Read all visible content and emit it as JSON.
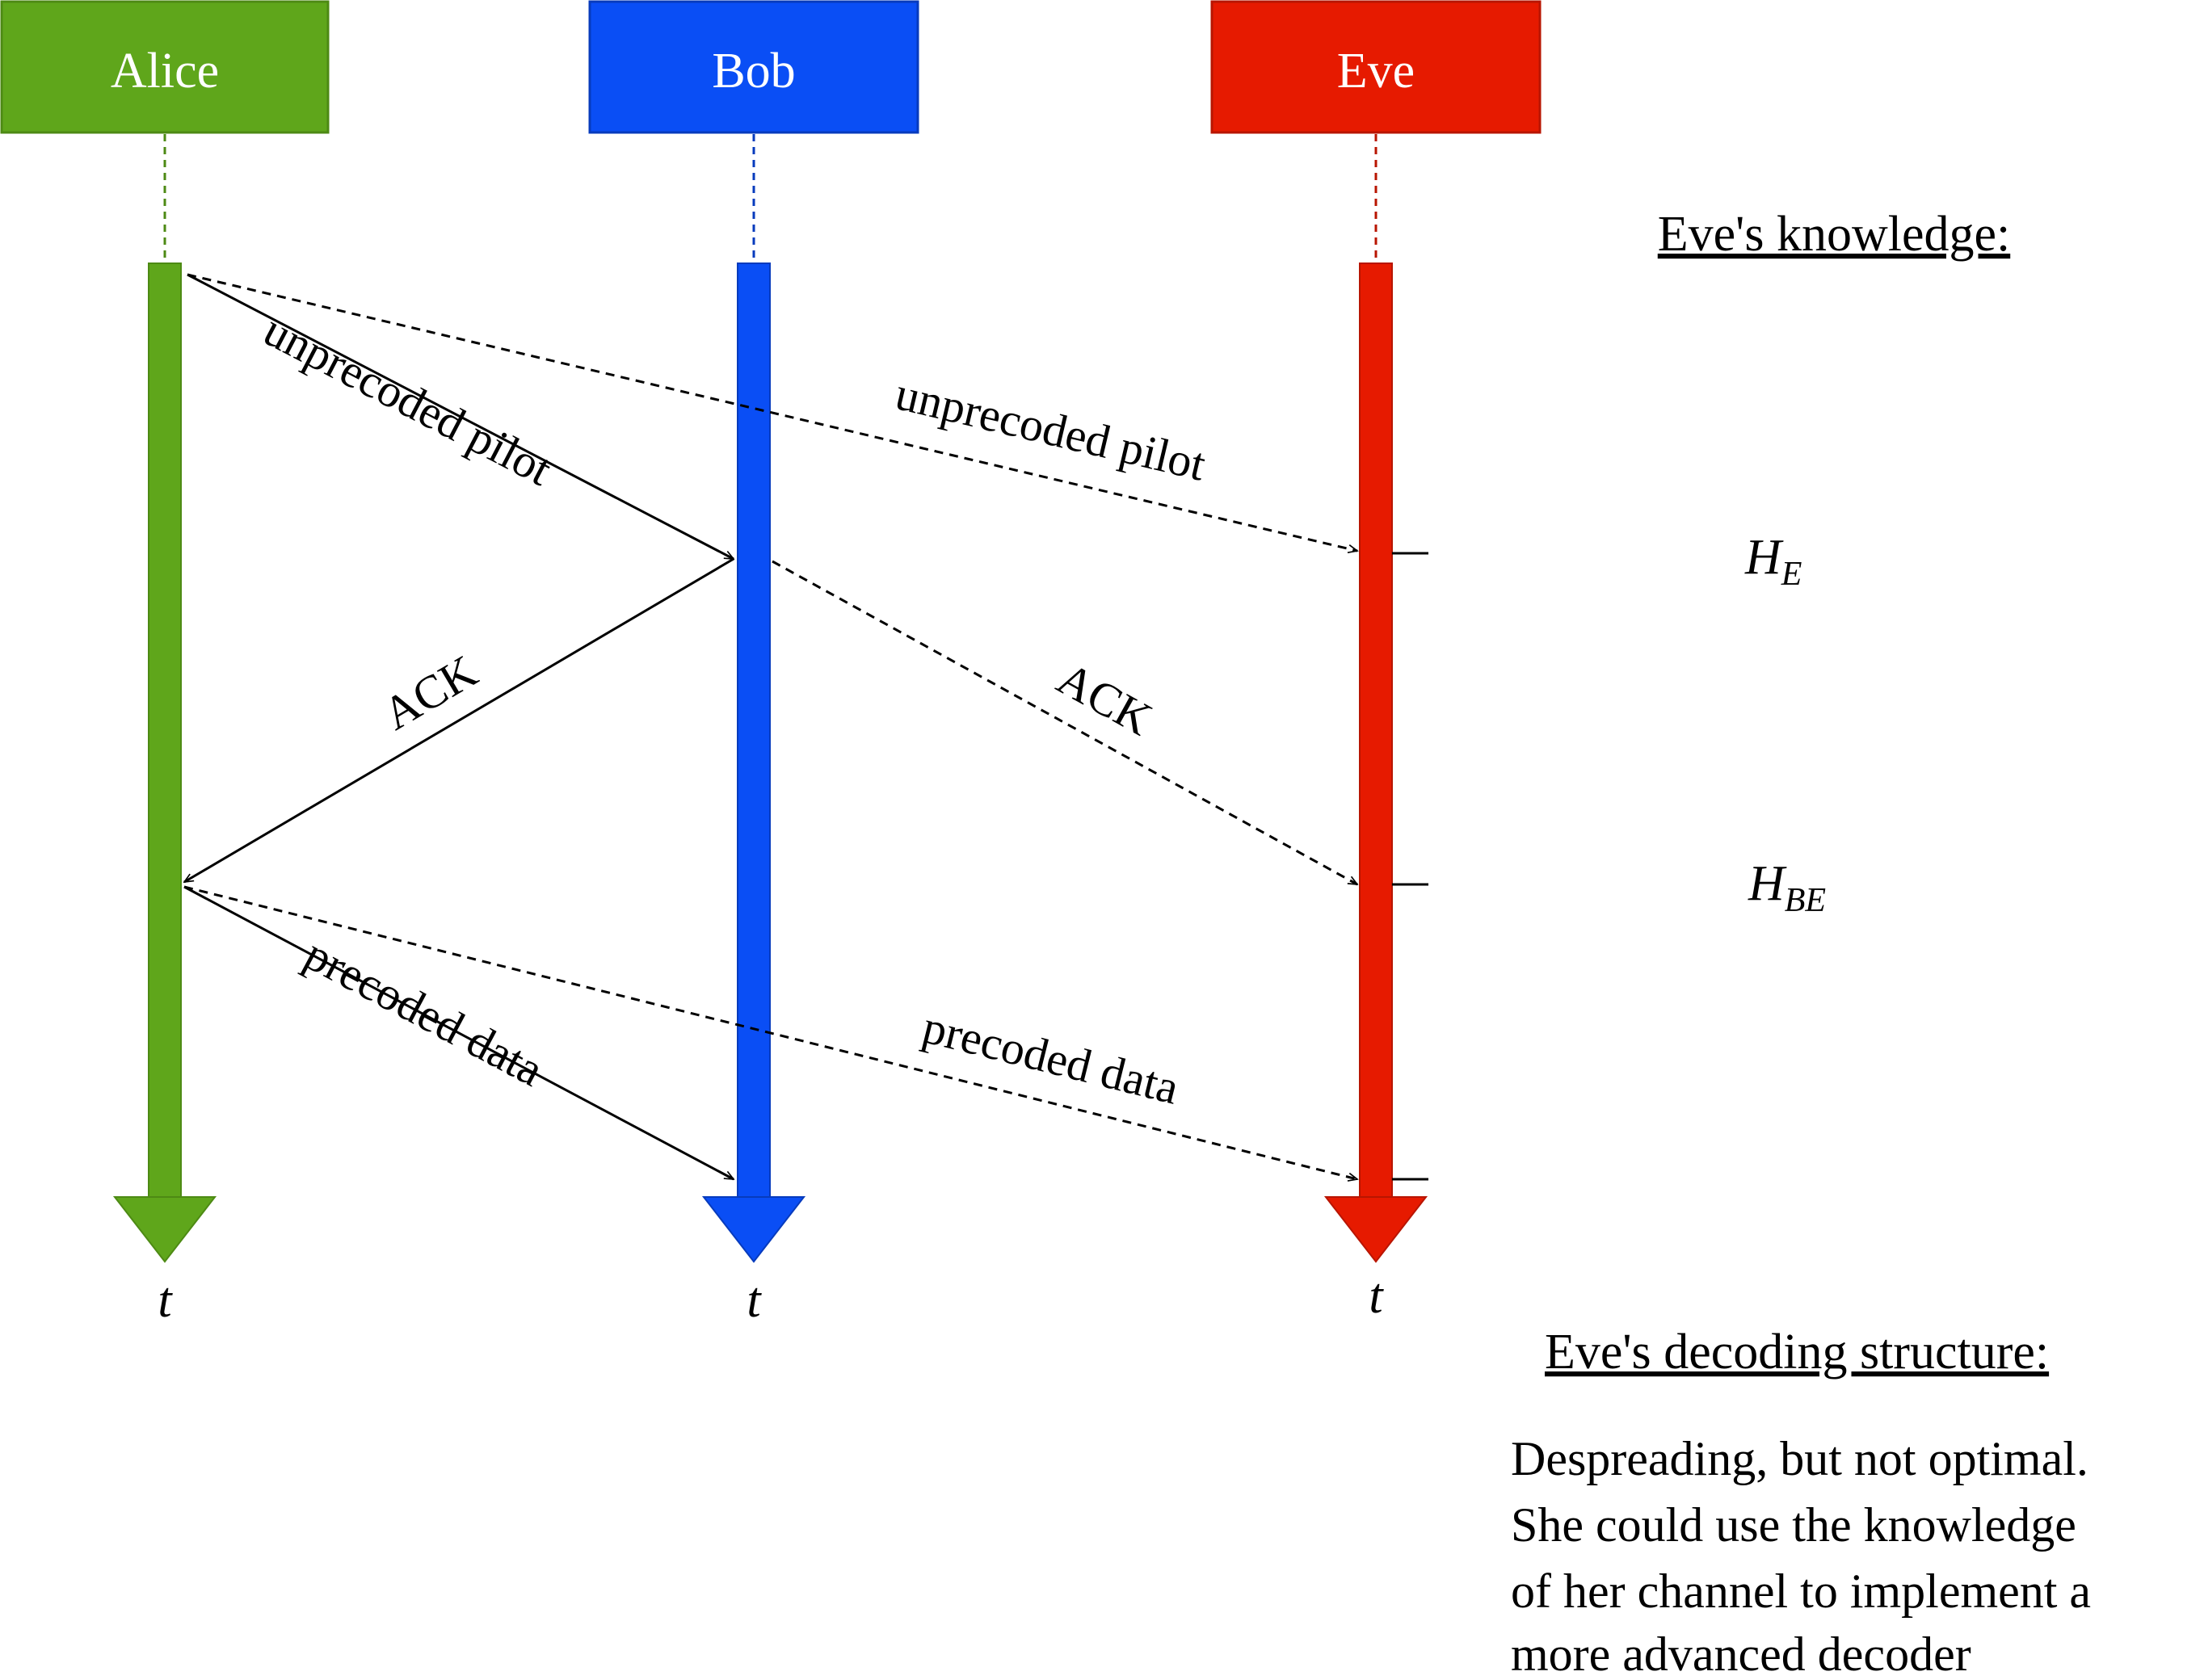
{
  "actors": [
    {
      "name": "Alice",
      "color": "#5fa61b",
      "border": "#4d8a14"
    },
    {
      "name": "Bob",
      "color": "#0a4ef5",
      "border": "#073bbd"
    },
    {
      "name": "Eve",
      "color": "#e61a00",
      "border": "#b81500"
    }
  ],
  "time_label": "t",
  "messages": {
    "pilot_to_bob": "unprecoded pilot",
    "pilot_to_eve": "unprecoded pilot",
    "ack_to_alice": "ACK",
    "ack_to_eve": "ACK",
    "data_to_bob": "precoded data",
    "data_to_eve": "precoded data"
  },
  "side_panel": {
    "knowledge_heading": "Eve's knowledge:",
    "knowledge_items": [
      {
        "symbol": "H",
        "subscript": "E"
      },
      {
        "symbol": "H",
        "subscript": "BE"
      }
    ],
    "decoding_heading": "Eve's decoding structure:",
    "decoding_text": [
      "Despreading, but not optimal.",
      "She could use the knowledge",
      "of her channel to implement a",
      "more advanced decoder"
    ]
  }
}
